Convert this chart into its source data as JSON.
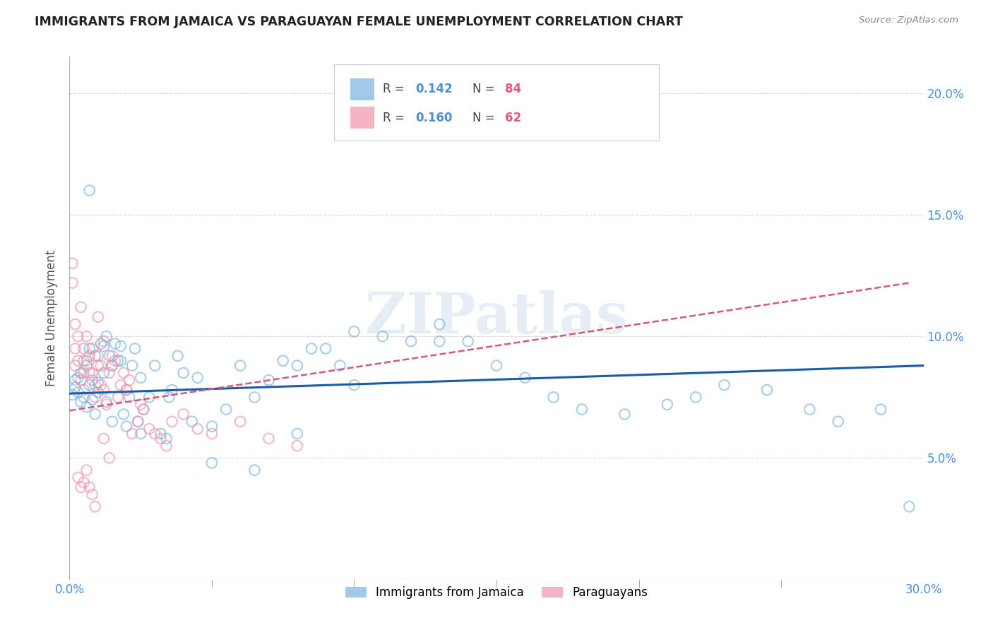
{
  "title": "IMMIGRANTS FROM JAMAICA VS PARAGUAYAN FEMALE UNEMPLOYMENT CORRELATION CHART",
  "source": "Source: ZipAtlas.com",
  "ylabel": "Female Unemployment",
  "legend_label1": "Immigrants from Jamaica",
  "legend_label2": "Paraguayans",
  "blue_color": "#7ab3e0",
  "pink_color": "#f093a8",
  "blue_line_color": "#1a5ca8",
  "pink_line_color": "#d45a78",
  "watermark": "ZIPatlas",
  "background_color": "#ffffff",
  "xlim": [
    0.0,
    0.3
  ],
  "ylim": [
    0.0,
    0.215
  ],
  "blue_scatter_x": [
    0.001,
    0.002,
    0.002,
    0.003,
    0.003,
    0.004,
    0.004,
    0.005,
    0.005,
    0.006,
    0.006,
    0.007,
    0.007,
    0.008,
    0.008,
    0.009,
    0.009,
    0.01,
    0.01,
    0.011,
    0.012,
    0.013,
    0.013,
    0.014,
    0.015,
    0.015,
    0.016,
    0.017,
    0.018,
    0.019,
    0.02,
    0.021,
    0.022,
    0.023,
    0.024,
    0.025,
    0.026,
    0.028,
    0.03,
    0.032,
    0.034,
    0.036,
    0.038,
    0.04,
    0.043,
    0.045,
    0.05,
    0.055,
    0.06,
    0.065,
    0.07,
    0.075,
    0.08,
    0.085,
    0.09,
    0.095,
    0.1,
    0.11,
    0.12,
    0.13,
    0.14,
    0.15,
    0.16,
    0.17,
    0.18,
    0.195,
    0.21,
    0.22,
    0.23,
    0.245,
    0.26,
    0.27,
    0.285,
    0.295,
    0.007,
    0.012,
    0.018,
    0.025,
    0.035,
    0.05,
    0.065,
    0.08,
    0.1,
    0.13
  ],
  "blue_scatter_y": [
    0.076,
    0.079,
    0.082,
    0.083,
    0.077,
    0.085,
    0.073,
    0.09,
    0.075,
    0.071,
    0.088,
    0.08,
    0.095,
    0.082,
    0.074,
    0.068,
    0.092,
    0.081,
    0.077,
    0.097,
    0.085,
    0.1,
    0.073,
    0.092,
    0.088,
    0.065,
    0.097,
    0.09,
    0.096,
    0.068,
    0.063,
    0.075,
    0.088,
    0.095,
    0.065,
    0.06,
    0.07,
    0.075,
    0.088,
    0.06,
    0.058,
    0.078,
    0.092,
    0.085,
    0.065,
    0.083,
    0.048,
    0.07,
    0.088,
    0.075,
    0.082,
    0.09,
    0.088,
    0.095,
    0.095,
    0.088,
    0.102,
    0.1,
    0.098,
    0.105,
    0.098,
    0.088,
    0.083,
    0.075,
    0.07,
    0.068,
    0.072,
    0.075,
    0.08,
    0.078,
    0.07,
    0.065,
    0.07,
    0.03,
    0.16,
    0.096,
    0.09,
    0.083,
    0.075,
    0.063,
    0.045,
    0.06,
    0.08,
    0.098
  ],
  "pink_scatter_x": [
    0.001,
    0.001,
    0.002,
    0.002,
    0.003,
    0.003,
    0.004,
    0.004,
    0.005,
    0.005,
    0.005,
    0.006,
    0.006,
    0.007,
    0.007,
    0.008,
    0.008,
    0.009,
    0.009,
    0.01,
    0.01,
    0.011,
    0.011,
    0.012,
    0.012,
    0.013,
    0.014,
    0.015,
    0.016,
    0.017,
    0.018,
    0.019,
    0.02,
    0.021,
    0.022,
    0.024,
    0.026,
    0.028,
    0.03,
    0.032,
    0.034,
    0.036,
    0.04,
    0.045,
    0.05,
    0.06,
    0.07,
    0.08,
    0.003,
    0.004,
    0.006,
    0.008,
    0.01,
    0.012,
    0.015,
    0.02,
    0.025,
    0.002,
    0.005,
    0.007,
    0.009,
    0.014
  ],
  "pink_scatter_y": [
    0.13,
    0.122,
    0.095,
    0.088,
    0.1,
    0.09,
    0.112,
    0.082,
    0.085,
    0.095,
    0.078,
    0.1,
    0.09,
    0.085,
    0.092,
    0.095,
    0.085,
    0.075,
    0.08,
    0.088,
    0.092,
    0.08,
    0.088,
    0.098,
    0.078,
    0.072,
    0.085,
    0.088,
    0.09,
    0.075,
    0.08,
    0.085,
    0.078,
    0.082,
    0.06,
    0.065,
    0.07,
    0.062,
    0.06,
    0.058,
    0.055,
    0.065,
    0.068,
    0.062,
    0.06,
    0.065,
    0.058,
    0.055,
    0.042,
    0.038,
    0.045,
    0.035,
    0.108,
    0.058,
    0.092,
    0.078,
    0.072,
    0.105,
    0.04,
    0.038,
    0.03,
    0.05
  ],
  "blue_trend_x0": 0.0,
  "blue_trend_x1": 0.3,
  "blue_trend_y0": 0.0765,
  "blue_trend_y1": 0.088,
  "pink_trend_x0": 0.0,
  "pink_trend_x1": 0.295,
  "pink_trend_y0": 0.0695,
  "pink_trend_y1": 0.122
}
